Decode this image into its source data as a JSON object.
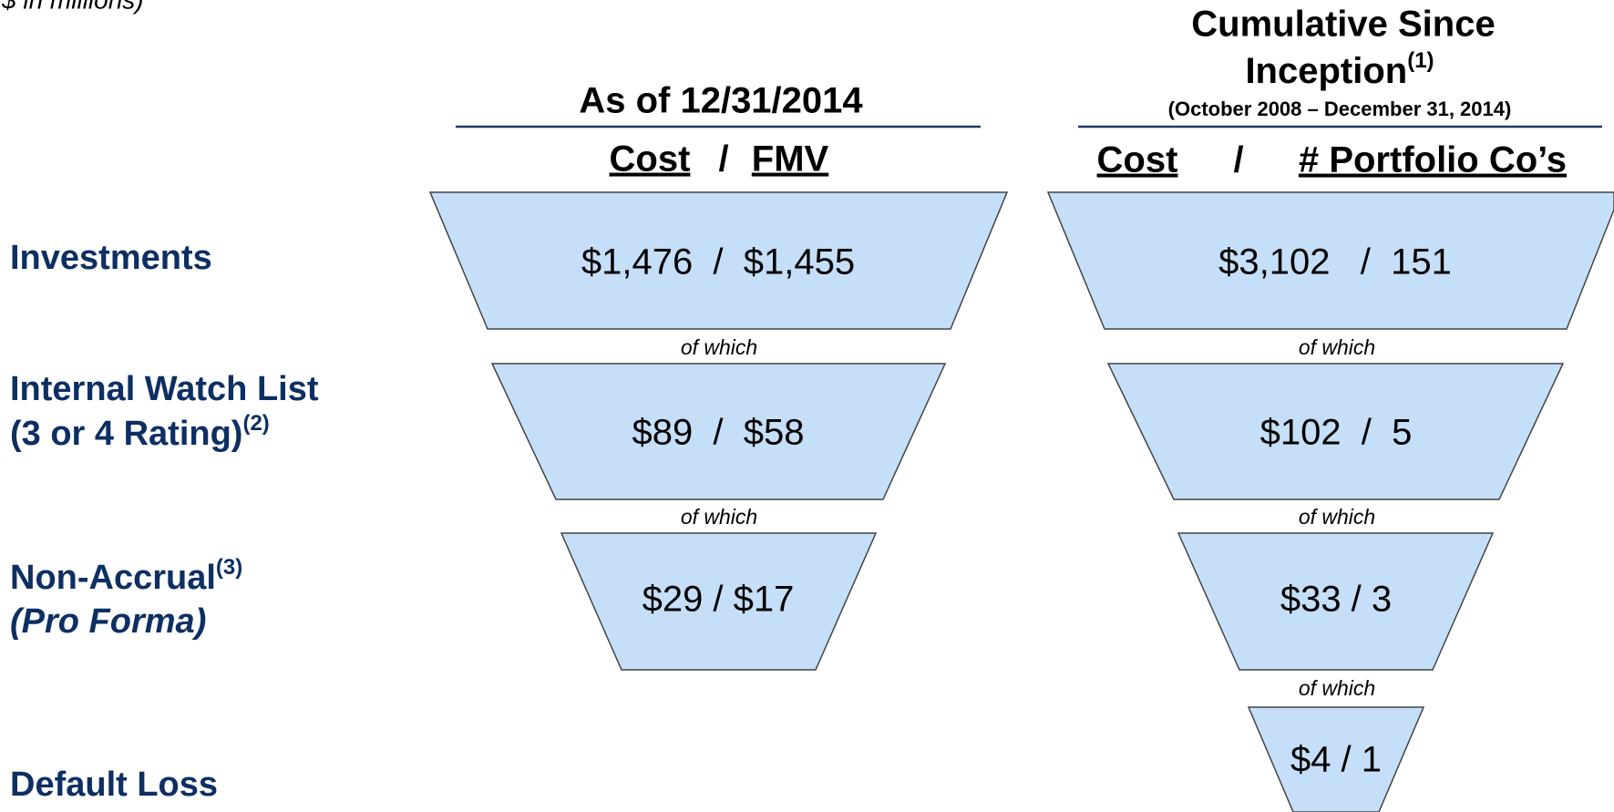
{
  "note": "$ in millions)",
  "columns": [
    {
      "title": "As of 12/31/2014",
      "subheader": [
        "Cost",
        "/",
        "FMV"
      ],
      "values": [
        "$1,476  /  $1,455",
        "$89  /  $58",
        "$29 / $17"
      ]
    },
    {
      "title": "Cumulative Since",
      "title_line2": "Inception",
      "title_sup": "(1)",
      "subtitle": "(October 2008 – December 31, 2014)",
      "subheader": [
        "Cost",
        "/",
        "# Portfolio Co’s"
      ],
      "values": [
        "$3,102   /  151",
        "$102  /  5",
        "$33 / 3",
        "$4 / 1"
      ]
    }
  ],
  "connector": "of which",
  "rows": [
    {
      "label": "Investments"
    },
    {
      "label": "Internal Watch List",
      "label_line2": "(3 or 4 Rating)",
      "sup": "(2)"
    },
    {
      "label": "Non-Accrual",
      "sup": "(3)",
      "label_line2": "(Pro Forma)"
    },
    {
      "label": "Default Loss"
    }
  ]
}
